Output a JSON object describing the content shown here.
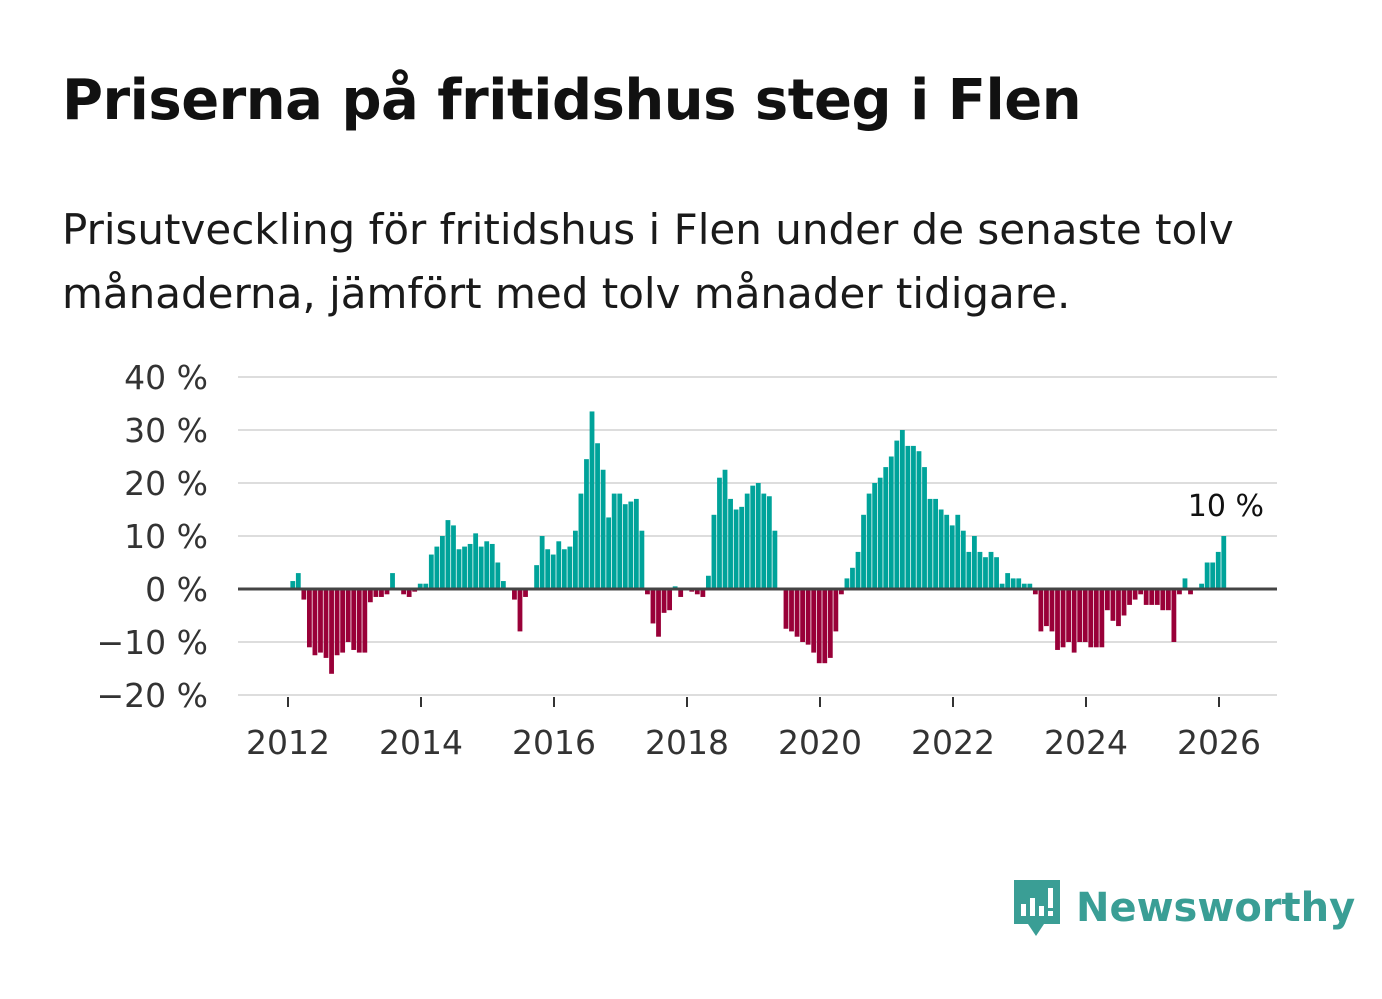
{
  "title": "Priserna på fritidshus steg i Flen",
  "subtitle": "Prisutveckling för fritidshus i Flen under de senaste tolv månaderna, jämfört med tolv månader tidigare.",
  "brand": "Newsworthy",
  "colors": {
    "positive": "#00a39a",
    "negative": "#990038",
    "grid": "#dddddd",
    "zero": "#444444",
    "brand": "#3a9e95"
  },
  "chart_data": {
    "type": "bar",
    "title": "Priserna på fritidshus steg i Flen",
    "xlabel": "",
    "ylabel": "",
    "start": "2012-01",
    "frequency": "monthly",
    "ylim": [
      -20,
      40
    ],
    "yticks": [
      {
        "v": 40,
        "label": "40 %"
      },
      {
        "v": 30,
        "label": "30 %"
      },
      {
        "v": 20,
        "label": "20 %"
      },
      {
        "v": 10,
        "label": "10 %"
      },
      {
        "v": 0,
        "label": "0 %"
      },
      {
        "v": -10,
        "label": "−10 %"
      },
      {
        "v": -20,
        "label": "−20 %"
      }
    ],
    "xticks": [
      "2012",
      "2014",
      "2016",
      "2018",
      "2020",
      "2022",
      "2024",
      "2026"
    ],
    "annotation": "10 %",
    "values": [
      1.5,
      3,
      -2,
      -11,
      -12.5,
      -12,
      -13,
      -16,
      -12.5,
      -12,
      -10,
      -11.5,
      -12,
      -12,
      -2.5,
      -1.5,
      -1.5,
      -1,
      3,
      0,
      -1,
      -1.5,
      -0.5,
      1,
      1,
      6.5,
      8,
      10,
      13,
      12,
      7.5,
      8,
      8.5,
      10.5,
      8,
      9,
      8.5,
      5,
      1.5,
      0,
      -2,
      -8,
      -1.5,
      0,
      4.5,
      10,
      7.5,
      6.5,
      9,
      7.5,
      8,
      11,
      18,
      24.5,
      33.5,
      27.5,
      22.5,
      13.5,
      18,
      18,
      16,
      16.5,
      17,
      11,
      -1,
      -6.5,
      -9,
      -4.5,
      -4,
      0.5,
      -1.5,
      0,
      -0.5,
      -1,
      -1.5,
      2.5,
      14,
      21,
      22.5,
      17,
      15,
      15.5,
      18,
      19.5,
      20,
      18,
      17.5,
      11,
      0,
      -7.5,
      -8,
      -9,
      -10,
      -10.5,
      -12,
      -14,
      -14,
      -13,
      -8,
      -1,
      2,
      4,
      7,
      14,
      18,
      20,
      21,
      23,
      25,
      28,
      30,
      27,
      27,
      26,
      23,
      17,
      17,
      15,
      14,
      12,
      14,
      11,
      7,
      10,
      7,
      6,
      7,
      6,
      1,
      3,
      2,
      2,
      1,
      1,
      -1,
      -8,
      -7,
      -8,
      -11.5,
      -11,
      -10,
      -12,
      -10,
      -10,
      -11,
      -11,
      -11,
      -4,
      -6,
      -7,
      -5,
      -3,
      -2,
      -1,
      -3,
      -3,
      -3,
      -4,
      -4,
      -10,
      -1,
      2,
      -1,
      0,
      1,
      5,
      5,
      7,
      10
    ]
  }
}
